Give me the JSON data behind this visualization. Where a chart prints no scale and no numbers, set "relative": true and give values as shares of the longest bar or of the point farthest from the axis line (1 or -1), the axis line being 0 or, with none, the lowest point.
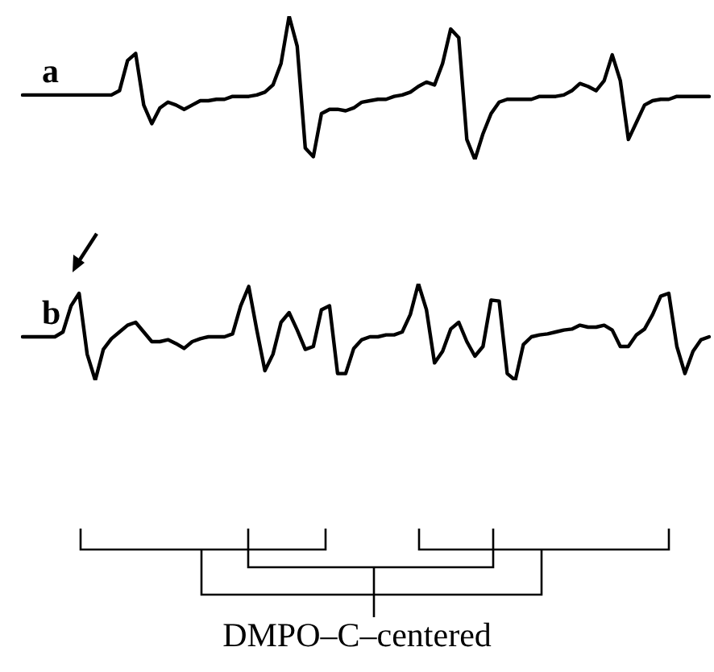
{
  "chart_data": [
    {
      "type": "line",
      "relative": true,
      "grid": false,
      "marker": "none",
      "line_style": "solid",
      "categories": [
        null,
        null,
        null,
        null,
        null,
        null,
        null,
        null,
        null,
        null,
        null,
        null,
        null,
        null,
        null,
        null,
        null,
        null,
        null,
        null,
        null,
        null,
        null,
        null,
        null,
        null,
        null,
        null,
        null,
        null,
        null,
        null,
        null,
        null,
        null,
        null,
        null,
        null,
        null,
        null,
        null,
        null,
        null,
        null,
        null,
        null,
        null,
        null,
        null,
        null,
        null,
        null,
        null,
        null,
        null,
        null,
        null,
        null,
        null,
        null,
        null,
        null,
        null,
        null,
        null,
        null,
        null,
        null,
        null,
        null,
        null,
        null,
        null,
        null,
        null,
        null,
        null,
        null,
        null,
        null,
        null,
        null,
        null,
        null,
        null,
        null
      ],
      "series": [
        {
          "name": "a",
          "color": "#000000",
          "values": [
            0.45,
            0.45,
            0.45,
            0.45,
            0.45,
            0.45,
            0.45,
            0.45,
            0.45,
            0.45,
            0.45,
            0.45,
            0.48,
            0.69,
            0.74,
            0.38,
            0.25,
            0.36,
            0.4,
            0.38,
            0.35,
            0.38,
            0.41,
            0.41,
            0.42,
            0.42,
            0.44,
            0.44,
            0.44,
            0.45,
            0.47,
            0.52,
            0.67,
            1,
            0.79,
            0.08,
            0.02,
            0.32,
            0.35,
            0.35,
            0.34,
            0.36,
            0.4,
            0.41,
            0.42,
            0.42,
            0.44,
            0.45,
            0.47,
            0.51,
            0.54,
            0.52,
            0.67,
            0.91,
            0.85,
            0.14,
            0,
            0.18,
            0.32,
            0.4,
            0.42,
            0.42,
            0.42,
            0.42,
            0.44,
            0.44,
            0.44,
            0.45,
            0.48,
            0.53,
            0.51,
            0.48,
            0.55,
            0.73,
            0.55,
            0.14,
            0.26,
            0.38,
            0.41,
            0.42,
            0.42,
            0.44,
            0.44,
            0.44,
            0.44,
            0.44
          ]
        }
      ]
    },
    {
      "type": "line",
      "relative": true,
      "grid": false,
      "marker": "none",
      "line_style": "solid",
      "categories": [
        null,
        null,
        null,
        null,
        null,
        null,
        null,
        null,
        null,
        null,
        null,
        null,
        null,
        null,
        null,
        null,
        null,
        null,
        null,
        null,
        null,
        null,
        null,
        null,
        null,
        null,
        null,
        null,
        null,
        null,
        null,
        null,
        null,
        null,
        null,
        null,
        null,
        null,
        null,
        null,
        null,
        null,
        null,
        null,
        null,
        null,
        null,
        null,
        null,
        null,
        null,
        null,
        null,
        null,
        null,
        null,
        null,
        null,
        null,
        null,
        null,
        null,
        null,
        null,
        null,
        null,
        null,
        null,
        null,
        null,
        null,
        null,
        null,
        null,
        null,
        null,
        null,
        null,
        null,
        null,
        null,
        null,
        null,
        null,
        null,
        null
      ],
      "series": [
        {
          "name": "b",
          "color": "#000000",
          "values": [
            0.45,
            0.45,
            0.45,
            0.45,
            0.45,
            0.5,
            0.77,
            0.9,
            0.27,
            0,
            0.32,
            0.43,
            0.5,
            0.57,
            0.6,
            0.5,
            0.4,
            0.4,
            0.42,
            0.38,
            0.33,
            0.4,
            0.43,
            0.45,
            0.45,
            0.45,
            0.48,
            0.77,
            0.97,
            0.52,
            0.1,
            0.27,
            0.6,
            0.7,
            0.52,
            0.32,
            0.35,
            0.73,
            0.77,
            0.07,
            0.07,
            0.33,
            0.42,
            0.45,
            0.45,
            0.47,
            0.47,
            0.5,
            0.68,
            1,
            0.73,
            0.18,
            0.3,
            0.53,
            0.6,
            0.4,
            0.25,
            0.35,
            0.83,
            0.82,
            0.07,
            0,
            0.37,
            0.45,
            0.47,
            0.48,
            0.5,
            0.52,
            0.53,
            0.57,
            0.55,
            0.55,
            0.57,
            0.52,
            0.35,
            0.35,
            0.47,
            0.53,
            0.68,
            0.87,
            0.9,
            0.35,
            0.07,
            0.3,
            0.42,
            0.45
          ]
        }
      ],
      "annotations": [
        "DMPO–C–centered"
      ]
    }
  ]
}
